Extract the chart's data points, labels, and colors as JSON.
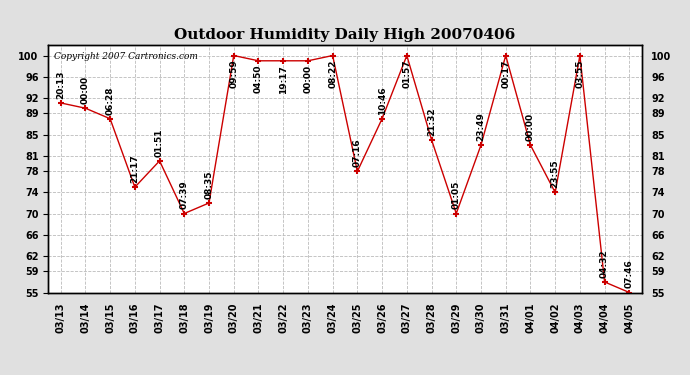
{
  "title": "Outdoor Humidity Daily High 20070406",
  "copyright": "Copyright 2007 Cartronics.com",
  "x_labels": [
    "03/13",
    "03/14",
    "03/15",
    "03/16",
    "03/17",
    "03/18",
    "03/19",
    "03/20",
    "03/21",
    "03/22",
    "03/23",
    "03/24",
    "03/25",
    "03/26",
    "03/27",
    "03/28",
    "03/29",
    "03/30",
    "03/31",
    "04/01",
    "04/02",
    "04/03",
    "04/04",
    "04/05"
  ],
  "x_values": [
    0,
    1,
    2,
    3,
    4,
    5,
    6,
    7,
    8,
    9,
    10,
    11,
    12,
    13,
    14,
    15,
    16,
    17,
    18,
    19,
    20,
    21,
    22,
    23
  ],
  "y_values": [
    91,
    90,
    88,
    75,
    80,
    70,
    72,
    100,
    99,
    99,
    99,
    100,
    78,
    88,
    100,
    84,
    70,
    83,
    100,
    83,
    74,
    100,
    57,
    55
  ],
  "point_labels": [
    "20:13",
    "00:00",
    "06:28",
    "21:17",
    "01:51",
    "07:39",
    "08:35",
    "09:59",
    "04:50",
    "19:17",
    "00:00",
    "08:22",
    "07:16",
    "10:46",
    "01:57",
    "21:32",
    "01:05",
    "23:49",
    "00:17",
    "00:00",
    "23:55",
    "03:55",
    "04:32",
    "07:46"
  ],
  "ylim": [
    55,
    102
  ],
  "yticks": [
    55,
    59,
    62,
    66,
    70,
    74,
    78,
    81,
    85,
    89,
    92,
    96,
    100
  ],
  "line_color": "#cc0000",
  "marker_color": "#cc0000",
  "grid_color": "#bbbbbb",
  "bg_color": "#e0e0e0",
  "plot_bg": "#ffffff",
  "title_fontsize": 11,
  "tick_fontsize": 7,
  "point_label_fontsize": 6.5
}
